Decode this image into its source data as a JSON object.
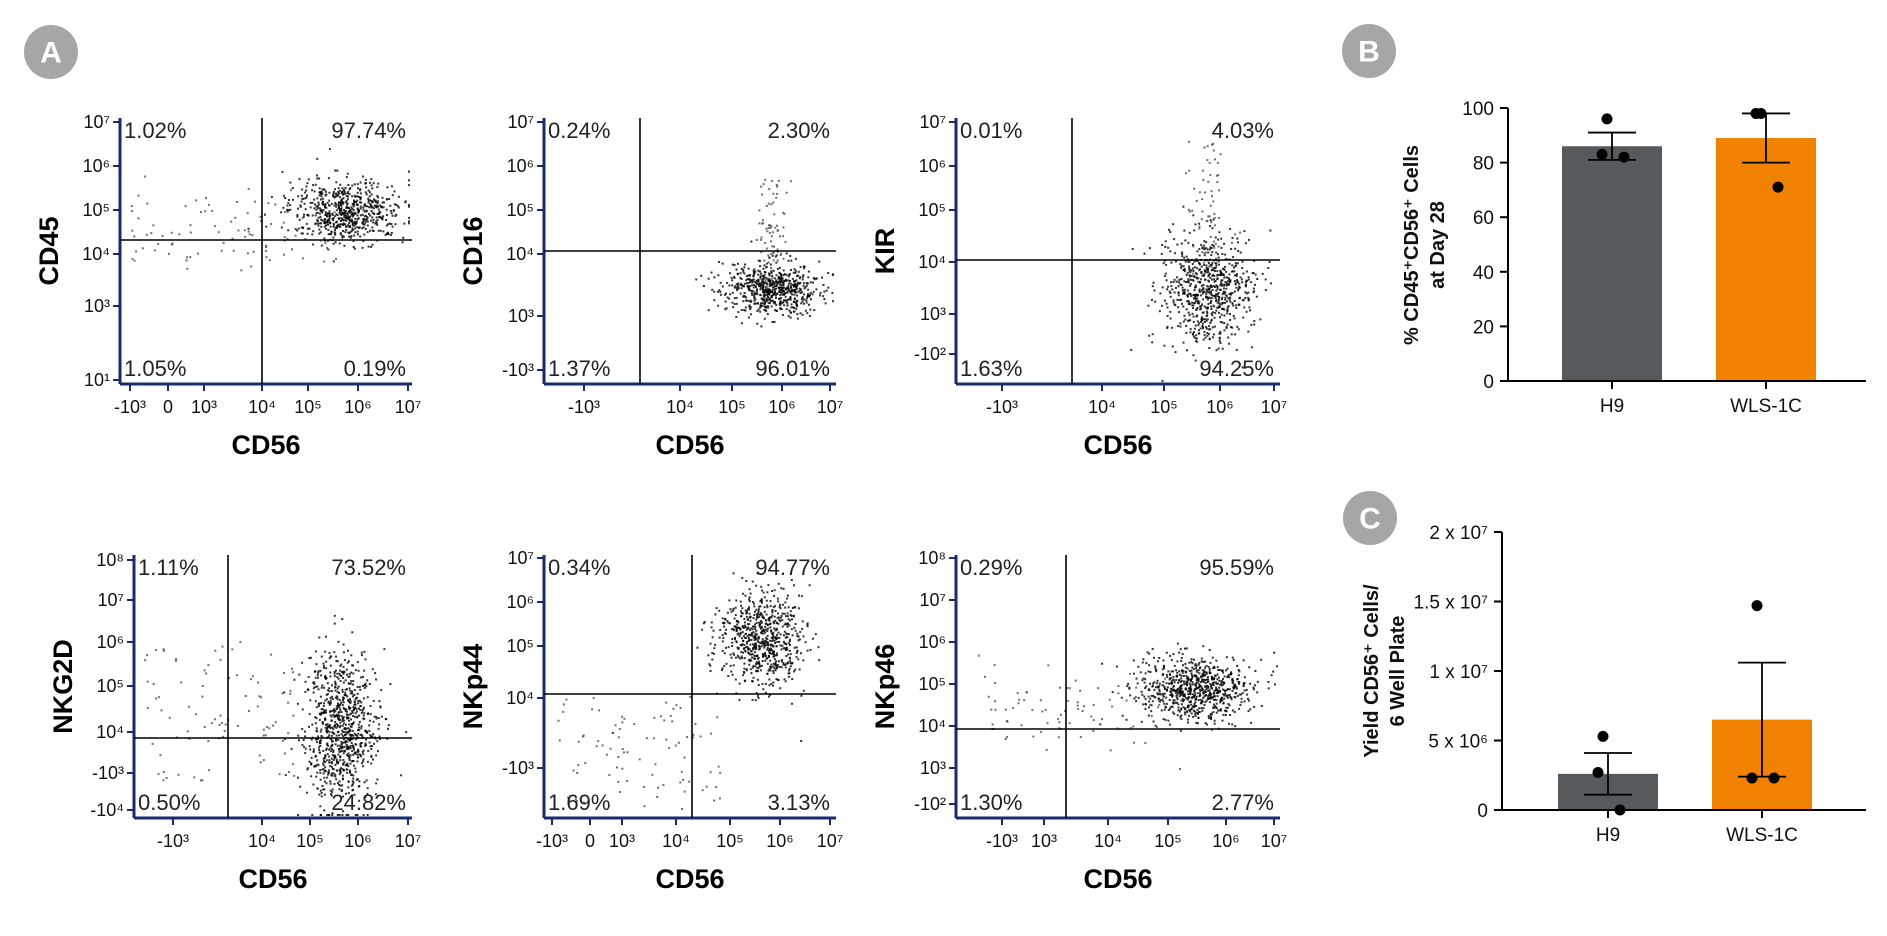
{
  "panels": [
    {
      "label": "A"
    },
    {
      "label": "B"
    },
    {
      "label": "C"
    }
  ],
  "chart_data": [
    {
      "type": "scatter",
      "subtype": "flow-cytometry-quadrant",
      "xlabel": "CD56",
      "ylabel": "CD45",
      "y_ticks": [
        "10⁷",
        "10⁶",
        "10⁵",
        "10⁴",
        "10³",
        "10¹"
      ],
      "x_ticks": [
        "-10³",
        "0",
        "10³",
        "10⁴",
        "10⁵",
        "10⁶",
        "10⁷"
      ],
      "quadrants": {
        "upper_left": "1.02%",
        "upper_right": "97.74%",
        "lower_left": "1.05%",
        "lower_right": "0.19%"
      }
    },
    {
      "type": "scatter",
      "subtype": "flow-cytometry-quadrant",
      "xlabel": "CD56",
      "ylabel": "CD16",
      "y_ticks": [
        "10⁷",
        "10⁶",
        "10⁵",
        "10⁴",
        "10³",
        "-10³"
      ],
      "x_ticks": [
        "-10³",
        "10⁴",
        "10⁵",
        "10⁶",
        "10⁷"
      ],
      "quadrants": {
        "upper_left": "0.24%",
        "upper_right": "2.30%",
        "lower_left": "1.37%",
        "lower_right": "96.01%"
      }
    },
    {
      "type": "scatter",
      "subtype": "flow-cytometry-quadrant",
      "xlabel": "CD56",
      "ylabel": "KIR",
      "y_ticks": [
        "10⁷",
        "10⁶",
        "10⁵",
        "10⁴",
        "10³",
        "-10²"
      ],
      "x_ticks": [
        "-10³",
        "10⁴",
        "10⁵",
        "10⁶",
        "10⁷"
      ],
      "quadrants": {
        "upper_left": "0.01%",
        "upper_right": "4.03%",
        "lower_left": "1.63%",
        "lower_right": "94.25%"
      }
    },
    {
      "type": "scatter",
      "subtype": "flow-cytometry-quadrant",
      "xlabel": "CD56",
      "ylabel": "NKG2D",
      "y_ticks": [
        "10⁸",
        "10⁷",
        "10⁶",
        "10⁵",
        "10⁴",
        "-10³",
        "-10⁴"
      ],
      "x_ticks": [
        "-10³",
        "10⁴",
        "10⁵",
        "10⁶",
        "10⁷"
      ],
      "quadrants": {
        "upper_left": "1.11%",
        "upper_right": "73.52%",
        "lower_left": "0.50%",
        "lower_right": "24.82%"
      }
    },
    {
      "type": "scatter",
      "subtype": "flow-cytometry-quadrant",
      "xlabel": "CD56",
      "ylabel": "NKp44",
      "y_ticks": [
        "10⁷",
        "10⁶",
        "10⁵",
        "10⁴",
        "-10³"
      ],
      "x_ticks": [
        "-10³",
        "0",
        "10³",
        "10⁴",
        "10⁵",
        "10⁶",
        "10⁷"
      ],
      "quadrants": {
        "upper_left": "0.34%",
        "upper_right": "94.77%",
        "lower_left": "1.69%",
        "lower_right": "3.13%"
      }
    },
    {
      "type": "scatter",
      "subtype": "flow-cytometry-quadrant",
      "xlabel": "CD56",
      "ylabel": "NKp46",
      "y_ticks": [
        "10⁸",
        "10⁷",
        "10⁶",
        "10⁵",
        "10⁴",
        "10³",
        "-10²"
      ],
      "x_ticks": [
        "-10³",
        "10³",
        "10⁴",
        "10⁵",
        "10⁶",
        "10⁷"
      ],
      "quadrants": {
        "upper_left": "0.29%",
        "upper_right": "95.59%",
        "lower_left": "1.30%",
        "lower_right": "2.77%"
      }
    },
    {
      "type": "bar",
      "categories": [
        "H9",
        "WLS-1C"
      ],
      "values": [
        86,
        89
      ],
      "errors": [
        5,
        9
      ],
      "points": [
        [
          96,
          83,
          82
        ],
        [
          98,
          98,
          71
        ]
      ],
      "colors": [
        "#575a5c",
        "#f08200"
      ],
      "ylabel_lines": [
        "% CD45⁺CD56⁺ Cells",
        "at Day 28"
      ],
      "ylim": [
        0,
        100
      ],
      "yticks": [
        0,
        20,
        40,
        60,
        80,
        100
      ],
      "ytick_labels": [
        "0",
        "20",
        "40",
        "60",
        "80",
        "100"
      ]
    },
    {
      "type": "bar",
      "categories": [
        "H9",
        "WLS-1C"
      ],
      "values": [
        2600000,
        6500000
      ],
      "errors": [
        1500000,
        4100000
      ],
      "points": [
        [
          5300000,
          2700000,
          0
        ],
        [
          14700000,
          2300000,
          2300000
        ]
      ],
      "colors": [
        "#575a5c",
        "#f08200"
      ],
      "ylabel_lines": [
        "Yield CD56⁺ Cells/",
        "6 Well Plate"
      ],
      "ylim": [
        0,
        20000000
      ],
      "yticks": [
        0,
        5000000,
        10000000,
        15000000,
        20000000
      ],
      "ytick_labels": [
        "0",
        "5 x 10⁶",
        "1 x 10⁷",
        "1.5 x 10⁷",
        "2 x 10⁷"
      ]
    }
  ]
}
